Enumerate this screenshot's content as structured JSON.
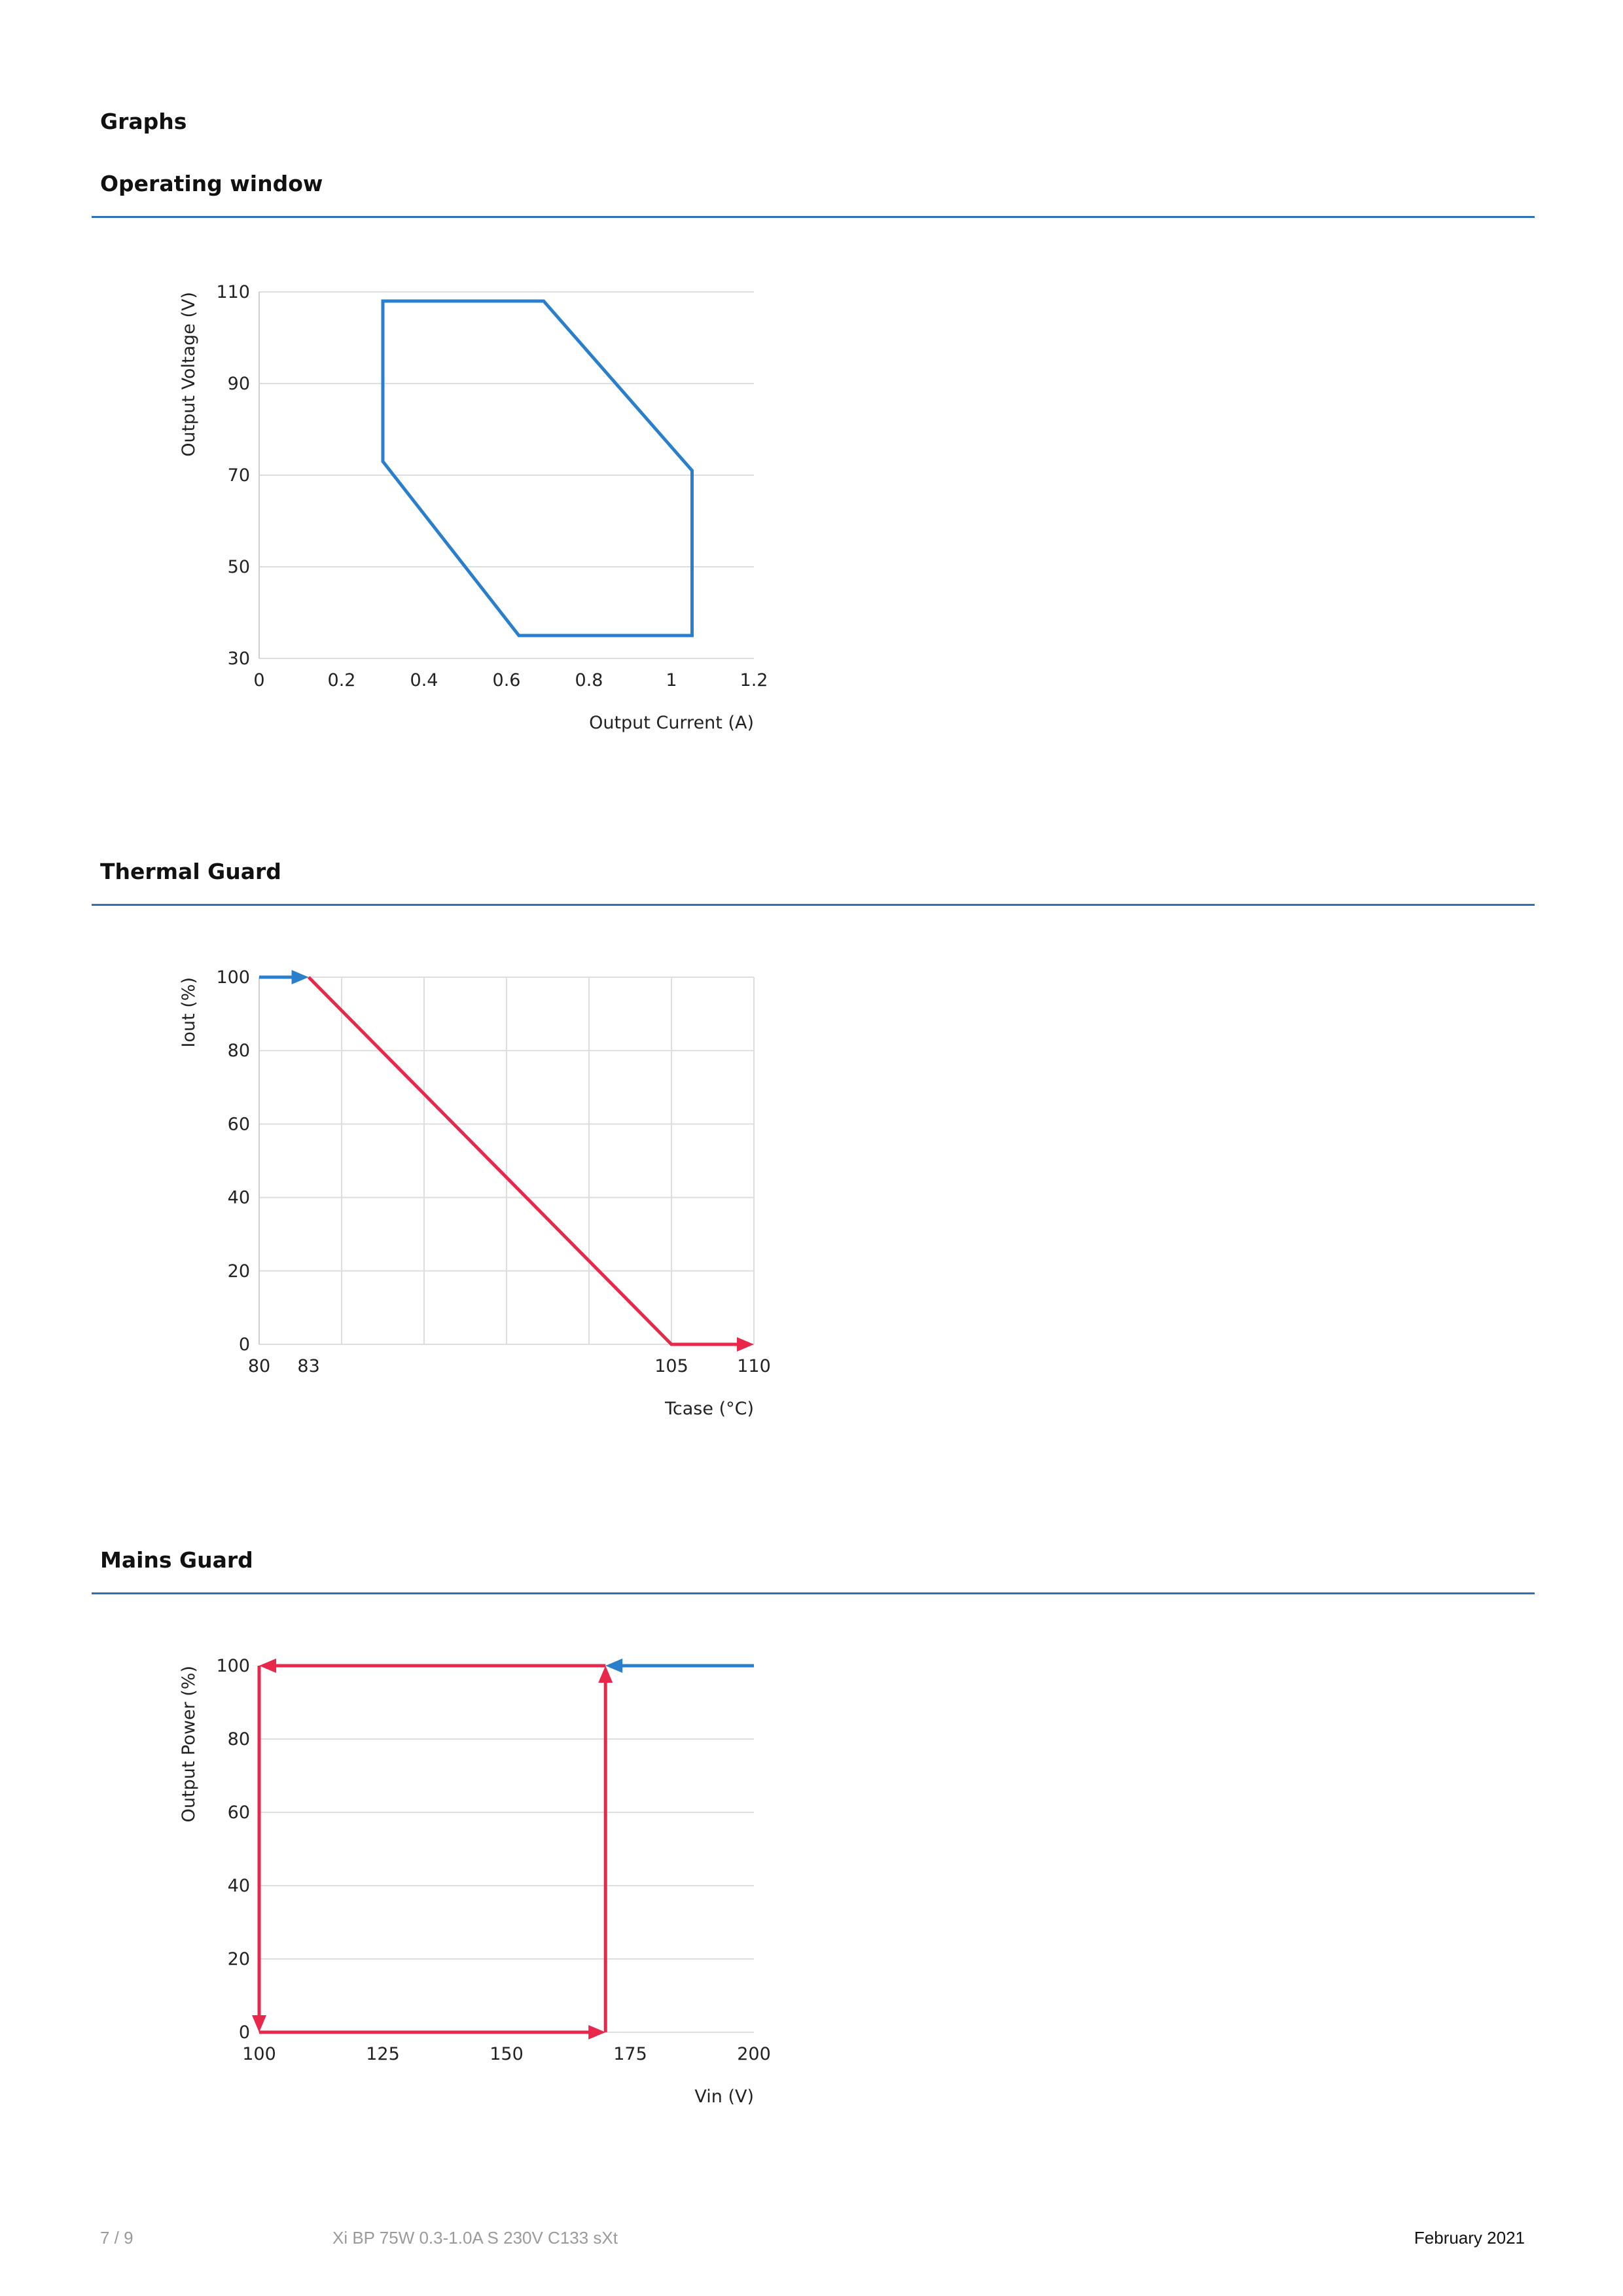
{
  "page": {
    "section_title": "Graphs",
    "footer": {
      "page_number": "7 / 9",
      "product": "Xi BP 75W 0.3-1.0A S 230V C133 sXt",
      "date": "February 2021"
    }
  },
  "colors": {
    "blue": "#2a7fcc",
    "red": "#e8274b",
    "rule": "#2f6fb5",
    "grid": "#dedede"
  },
  "chart_data": [
    {
      "id": "operating-window",
      "heading": "Operating window",
      "type": "line",
      "xlabel": "Output Current (A)",
      "ylabel": "Output Voltage (V)",
      "xlim": [
        0,
        1.2
      ],
      "ylim": [
        30,
        110
      ],
      "xticks": [
        0,
        0.2,
        0.4,
        0.6,
        0.8,
        1,
        1.2
      ],
      "xtick_labels": [
        "0",
        "0.2",
        "0.4",
        "0.6",
        "0.8",
        "1",
        "1.2"
      ],
      "yticks": [
        30,
        50,
        70,
        90,
        110
      ],
      "ytick_labels": [
        "30",
        "50",
        "70",
        "90",
        "110"
      ],
      "grid": {
        "horizontal": true,
        "vertical": false
      },
      "series": [
        {
          "color": "#2a7fcc",
          "closed": true,
          "points": [
            [
              0.3,
              108
            ],
            [
              0.69,
              108
            ],
            [
              1.05,
              71
            ],
            [
              1.05,
              35
            ],
            [
              0.63,
              35
            ],
            [
              0.3,
              73
            ]
          ]
        }
      ]
    },
    {
      "id": "thermal-guard",
      "heading": "Thermal Guard",
      "type": "line",
      "xlabel": "Tcase (°C)",
      "ylabel": "Iout (%)",
      "xlim": [
        80,
        110
      ],
      "ylim": [
        0,
        100
      ],
      "xticks": [
        80,
        83,
        105,
        110
      ],
      "xtick_labels": [
        "80",
        "83",
        "105",
        "110"
      ],
      "yticks": [
        0,
        20,
        40,
        60,
        80,
        100
      ],
      "ytick_labels": [
        "0",
        "20",
        "40",
        "60",
        "80",
        "100"
      ],
      "grid": {
        "horizontal": true,
        "vertical": true,
        "vertical_at": [
          85,
          90,
          95,
          100,
          105,
          110
        ]
      },
      "series": [
        {
          "color": "#2a7fcc",
          "points": [
            [
              80,
              100
            ],
            [
              83,
              100
            ]
          ],
          "arrow_end": true
        },
        {
          "color": "#e8274b",
          "points": [
            [
              83,
              100
            ],
            [
              105,
              0
            ],
            [
              110,
              0
            ]
          ],
          "arrow_end": true
        }
      ]
    },
    {
      "id": "mains-guard",
      "heading": "Mains Guard",
      "type": "line",
      "xlabel": "Vin (V)",
      "ylabel": "Output Power (%)",
      "xlim": [
        100,
        200
      ],
      "ylim": [
        0,
        100
      ],
      "xticks": [
        100,
        125,
        150,
        175,
        200
      ],
      "xtick_labels": [
        "100",
        "125",
        "150",
        "175",
        "200"
      ],
      "yticks": [
        0,
        20,
        40,
        60,
        80,
        100
      ],
      "ytick_labels": [
        "0",
        "20",
        "40",
        "60",
        "80",
        "100"
      ],
      "grid": {
        "horizontal": true,
        "vertical": false
      },
      "series": [
        {
          "color": "#2a7fcc",
          "points": [
            [
              200,
              100
            ],
            [
              170,
              100
            ]
          ],
          "arrow_end": true
        },
        {
          "color": "#e8274b",
          "points": [
            [
              170,
              100
            ],
            [
              100,
              100
            ]
          ],
          "arrow_end": true
        },
        {
          "color": "#e8274b",
          "points": [
            [
              100,
              100
            ],
            [
              100,
              0
            ]
          ],
          "arrow_end": true
        },
        {
          "color": "#e8274b",
          "points": [
            [
              100,
              0
            ],
            [
              170,
              0
            ]
          ],
          "arrow_end": true
        },
        {
          "color": "#e8274b",
          "points": [
            [
              170,
              0
            ],
            [
              170,
              100
            ]
          ],
          "arrow_end": true
        }
      ]
    }
  ]
}
